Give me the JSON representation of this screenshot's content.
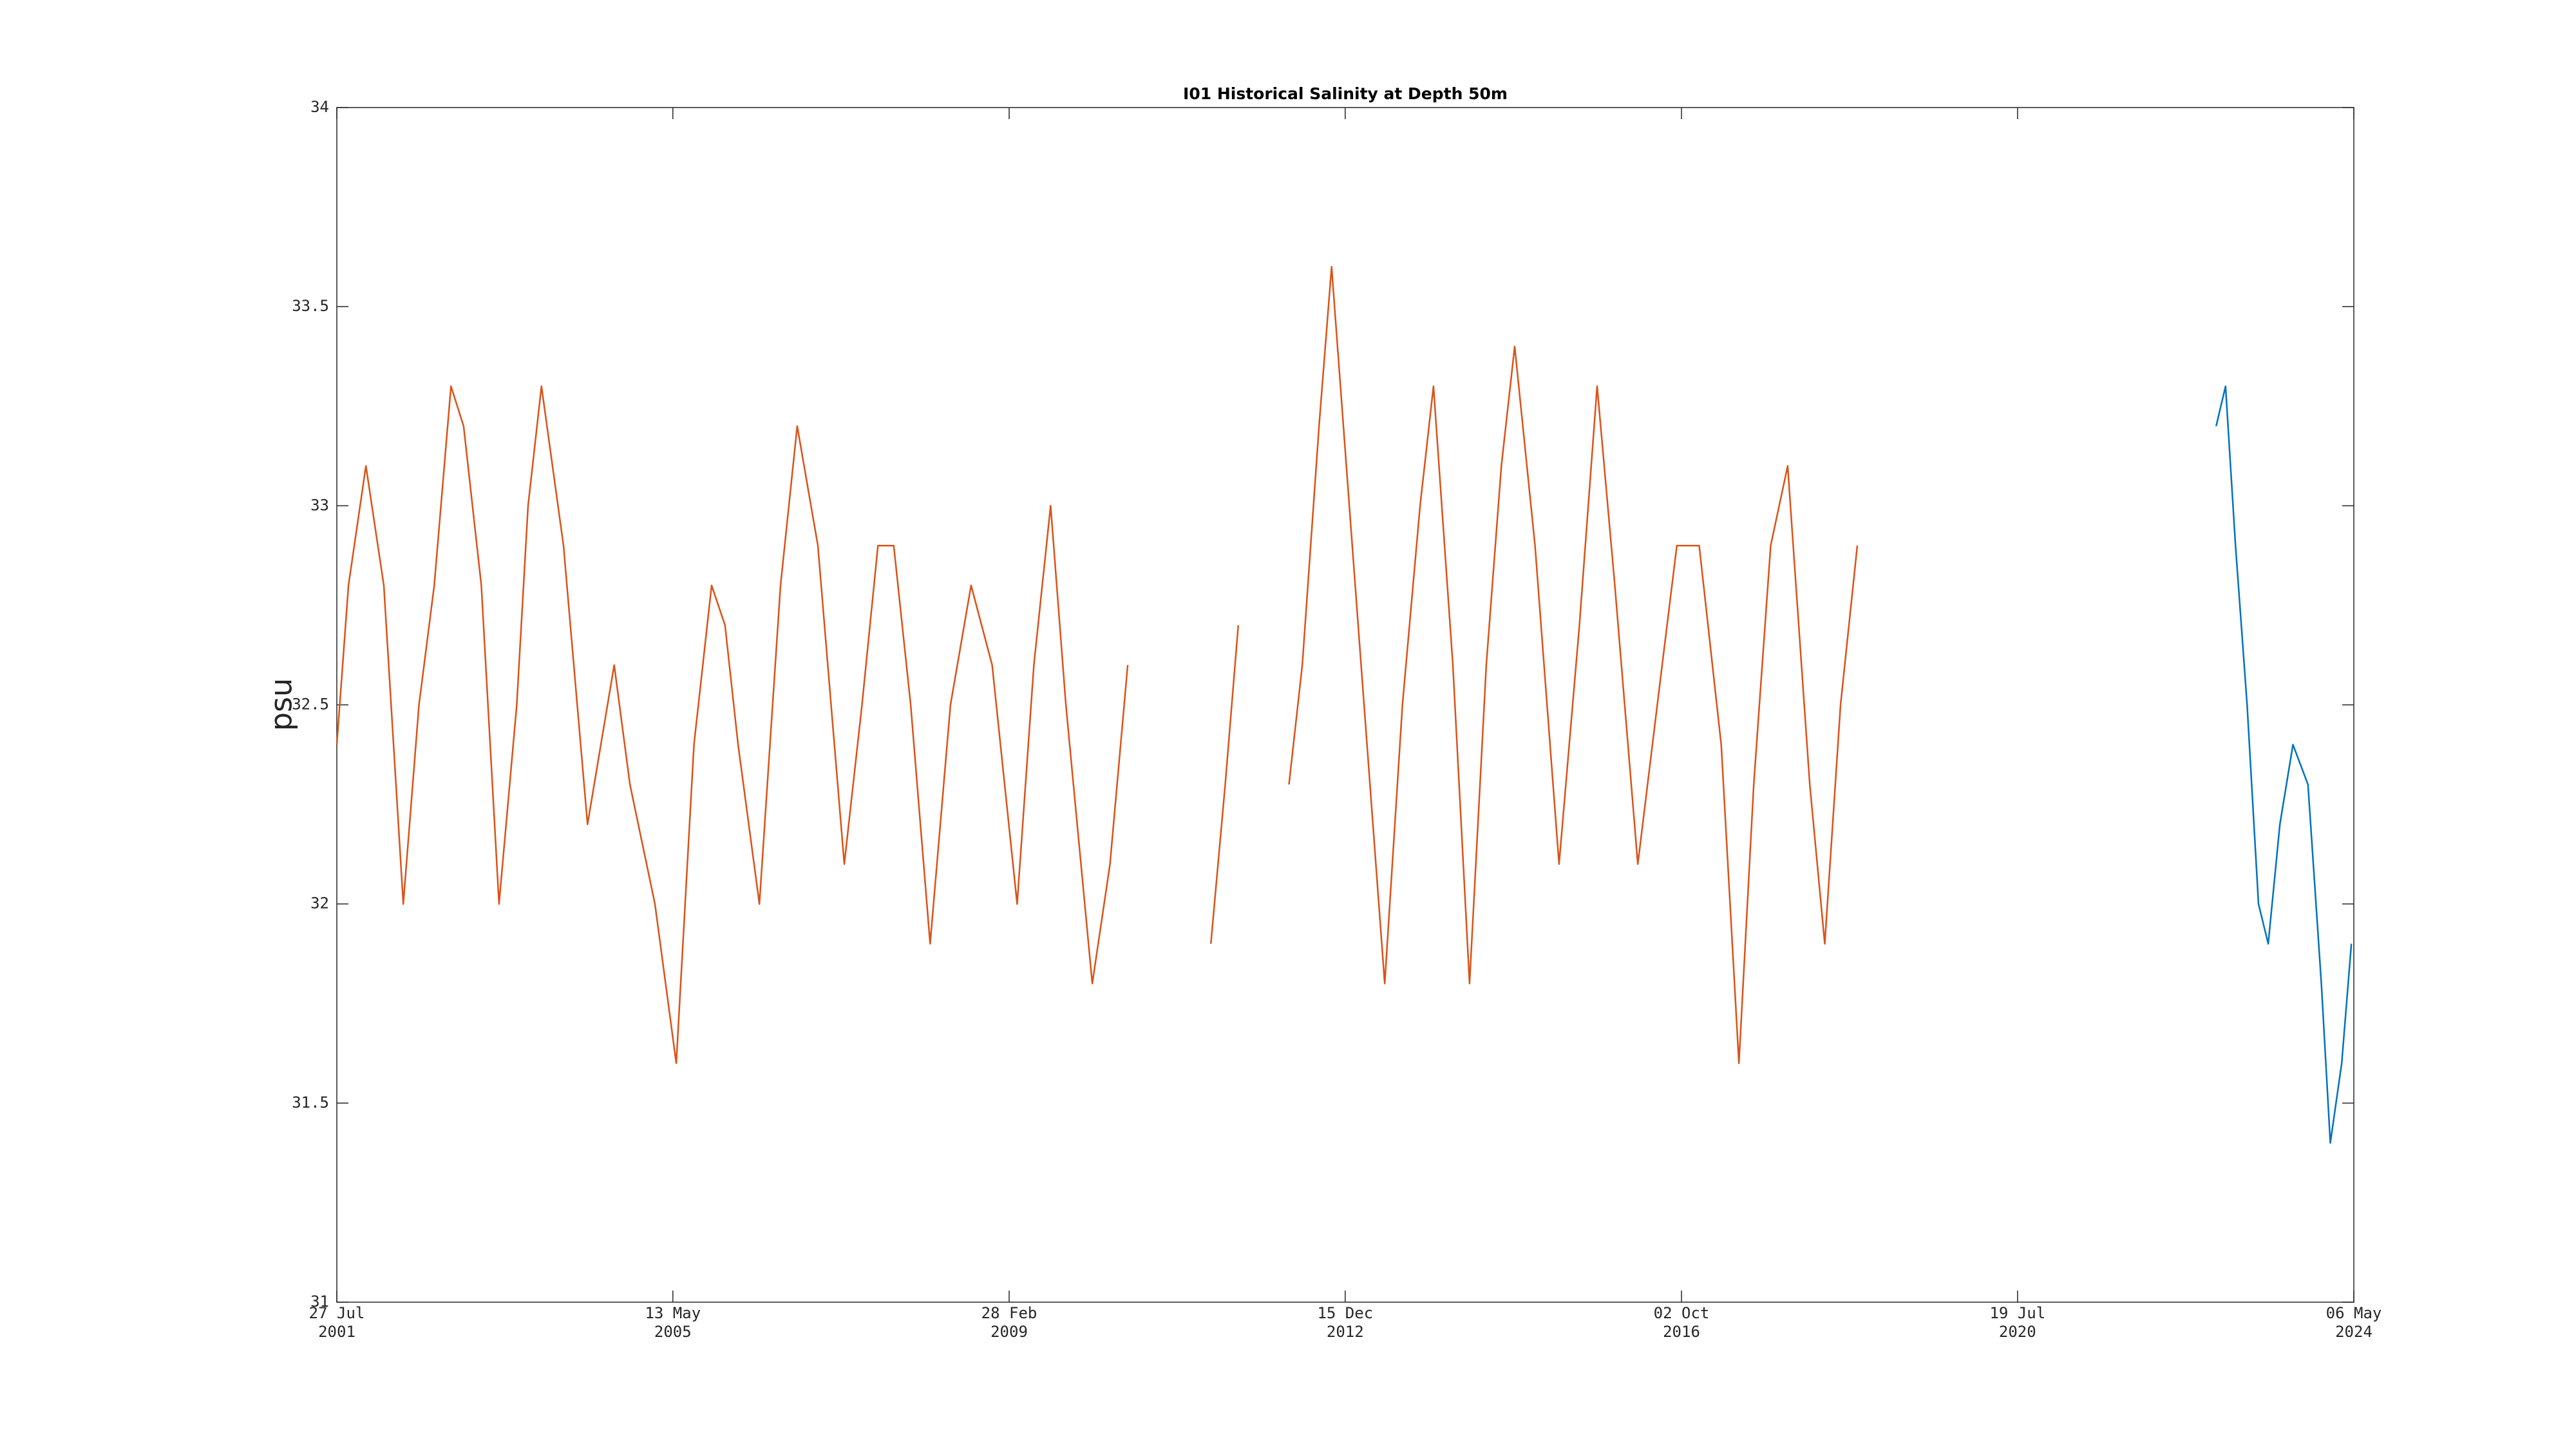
{
  "chart_data": {
    "type": "line",
    "title": "I01 Historical Salinity at Depth 50m",
    "y_label": "psu",
    "xlim": [
      "2001-07-27",
      "2024-05-06"
    ],
    "xticks": [
      {
        "value": "2001-07-27",
        "label": [
          "27 Jul",
          "2001"
        ]
      },
      {
        "value": "2005-05-13",
        "label": [
          "13 May",
          "2005"
        ]
      },
      {
        "value": "2009-02-28",
        "label": [
          "28 Feb",
          "2009"
        ]
      },
      {
        "value": "2012-12-15",
        "label": [
          "15 Dec",
          "2012"
        ]
      },
      {
        "value": "2016-10-02",
        "label": [
          "02 Oct",
          "2016"
        ]
      },
      {
        "value": "2020-07-19",
        "label": [
          "19 Jul",
          "2020"
        ]
      },
      {
        "value": "2024-05-06",
        "label": [
          "06 May",
          "2024"
        ]
      }
    ],
    "ylim": [
      31,
      34
    ],
    "yticks": [
      31,
      31.5,
      32,
      32.5,
      33,
      33.5,
      34
    ],
    "grid": false,
    "series": [
      {
        "color": "#D95319",
        "x": [
          "2001-07-27",
          "2001-09-13",
          "2001-11-24",
          "2002-02-06",
          "2002-04-27",
          "2002-07-01",
          "2002-09-02",
          "2002-11-10",
          "2003-01-01",
          "2003-03-15",
          "2003-05-27",
          "2003-08-08",
          "2003-09-24",
          "2003-11-18",
          "2004-02-17",
          "2004-05-26",
          "2004-09-13",
          "2004-11-17",
          "2005-02-28",
          "2005-05-27",
          "2005-08-08",
          "2005-10-20",
          "2005-12-14",
          "2006-02-06",
          "2006-05-05",
          "2006-07-31",
          "2006-10-08",
          "2007-01-01",
          "2007-04-20",
          "2007-07-02",
          "2007-09-06",
          "2007-11-10",
          "2008-01-19",
          "2008-04-08",
          "2008-07-01",
          "2008-09-24",
          "2008-12-20",
          "2009-04-02",
          "2009-06-10",
          "2009-08-18",
          "2009-10-20",
          "2010-02-06",
          "2010-04-20",
          "2010-07-02",
          "2011-01-01",
          "2011-06-10",
          "2011-08-08",
          "2011-10-01",
          "2012-01-01",
          "2012-04-27",
          "2012-06-21",
          "2012-08-29",
          "2012-10-20",
          "2013-01-01",
          "2013-03-15",
          "2013-05-27",
          "2013-08-08",
          "2013-10-20",
          "2013-12-14",
          "2014-03-04",
          "2014-05-12",
          "2014-07-20",
          "2014-09-20",
          "2014-11-14",
          "2015-02-06",
          "2015-05-16",
          "2015-08-08",
          "2015-10-20",
          "2016-01-01",
          "2016-04-05",
          "2016-06-24",
          "2016-09-13",
          "2016-12-14",
          "2017-03-15",
          "2017-05-27",
          "2017-07-27",
          "2017-10-05",
          "2017-12-14",
          "2018-03-15",
          "2018-05-16",
          "2018-07-20",
          "2018-09-27"
        ],
        "values": [
          32.4,
          32.8,
          33.1,
          32.8,
          32.0,
          32.5,
          32.8,
          33.3,
          33.2,
          32.8,
          32.0,
          32.5,
          33.0,
          33.3,
          32.9,
          32.2,
          32.6,
          32.3,
          32.0,
          31.6,
          32.4,
          32.8,
          32.7,
          32.4,
          32.0,
          32.8,
          33.2,
          32.9,
          32.1,
          32.5,
          32.9,
          32.9,
          32.5,
          31.9,
          32.5,
          32.8,
          32.6,
          32.0,
          32.6,
          33.0,
          32.5,
          31.8,
          32.1,
          32.6,
          null,
          31.9,
          32.3,
          32.7,
          null,
          32.3,
          32.6,
          33.2,
          33.6,
          33.0,
          32.4,
          31.8,
          32.5,
          33.0,
          33.3,
          32.6,
          31.8,
          32.6,
          33.1,
          33.4,
          32.9,
          32.1,
          32.7,
          33.3,
          32.8,
          32.1,
          32.5,
          32.9,
          32.9,
          32.4,
          31.6,
          32.3,
          32.9,
          33.1,
          32.3,
          31.9,
          32.5,
          32.9
        ]
      },
      {
        "color": "#0072BD",
        "x": [
          "2022-10-16",
          "2022-11-24",
          "2023-01-04",
          "2023-02-21",
          "2023-04-09",
          "2023-05-19",
          "2023-07-06",
          "2023-08-29",
          "2023-10-30",
          "2023-12-24",
          "2024-01-30",
          "2024-03-17",
          "2024-04-26"
        ],
        "values": [
          33.2,
          33.3,
          32.9,
          32.5,
          32.0,
          31.9,
          32.2,
          32.4,
          32.3,
          31.8,
          31.4,
          31.6,
          31.9
        ]
      }
    ]
  }
}
